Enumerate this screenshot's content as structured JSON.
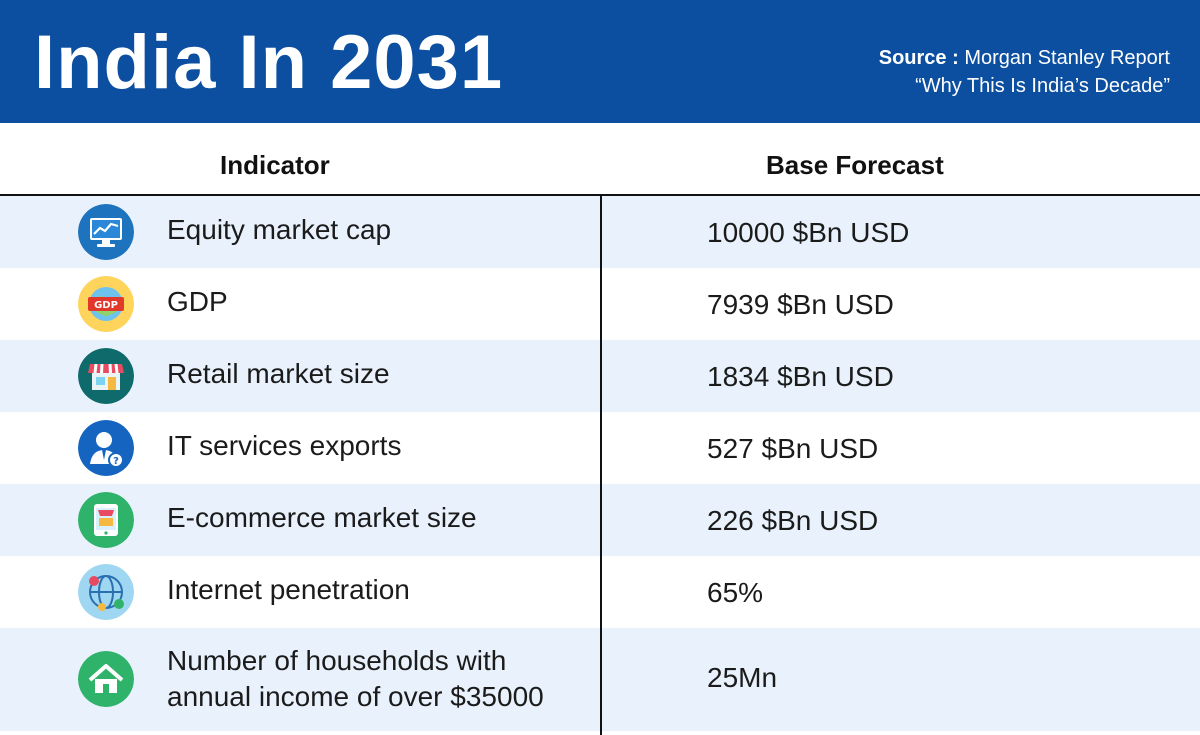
{
  "header": {
    "title": "India In 2031",
    "source_label": "Source :",
    "source_name": "Morgan Stanley Report",
    "source_report": "“Why This Is India’s Decade”"
  },
  "columns": {
    "indicator": "Indicator",
    "forecast": "Base Forecast"
  },
  "rows": [
    {
      "icon": "stock-chart-icon",
      "label": "Equity market cap",
      "value": "10000 $Bn USD"
    },
    {
      "icon": "gdp-globe-icon",
      "label": "GDP",
      "value": "7939 $Bn USD"
    },
    {
      "icon": "storefront-icon",
      "label": "Retail market size",
      "value": "1834 $Bn USD"
    },
    {
      "icon": "support-agent-icon",
      "label": "IT services exports",
      "value": "527 $Bn USD"
    },
    {
      "icon": "shopping-cart-icon",
      "label": "E-commerce market size",
      "value": "226 $Bn USD"
    },
    {
      "icon": "globe-network-icon",
      "label": "Internet penetration",
      "value": "65%"
    },
    {
      "icon": "house-icon",
      "label": "Number of households with annual income of over $35000",
      "value": "25Mn"
    }
  ],
  "colors": {
    "header_bg": "#0c4fa0",
    "row_shade": "#e9f2fc"
  }
}
